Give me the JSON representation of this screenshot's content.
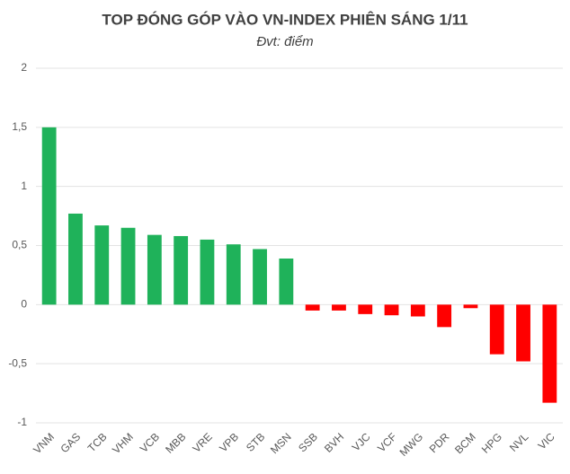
{
  "chart_data": {
    "type": "bar",
    "title": "TOP ĐÓNG GÓP VÀO VN-INDEX PHIÊN SÁNG 1/11",
    "subtitle": "Đvt: điểm",
    "categories": [
      "VNM",
      "GAS",
      "TCB",
      "VHM",
      "VCB",
      "MBB",
      "VRE",
      "VPB",
      "STB",
      "MSN",
      "SSB",
      "BVH",
      "VJC",
      "VCF",
      "MWG",
      "PDR",
      "BCM",
      "HPG",
      "NVL",
      "VIC"
    ],
    "values": [
      1.5,
      0.77,
      0.67,
      0.65,
      0.59,
      0.58,
      0.55,
      0.51,
      0.47,
      0.39,
      -0.05,
      -0.05,
      -0.08,
      -0.09,
      -0.1,
      -0.19,
      -0.03,
      -0.42,
      -0.48,
      -0.83
    ],
    "positive_color": "#1fb25a",
    "negative_color": "#ff0000",
    "ylim": [
      -1,
      2
    ],
    "yticks": [
      -1,
      {
        "value": -0.5,
        "label": "-0,5"
      },
      0,
      {
        "value": 0.5,
        "label": "0,5"
      },
      1,
      {
        "value": 1.5,
        "label": "1,5"
      },
      2
    ],
    "grid": true
  }
}
